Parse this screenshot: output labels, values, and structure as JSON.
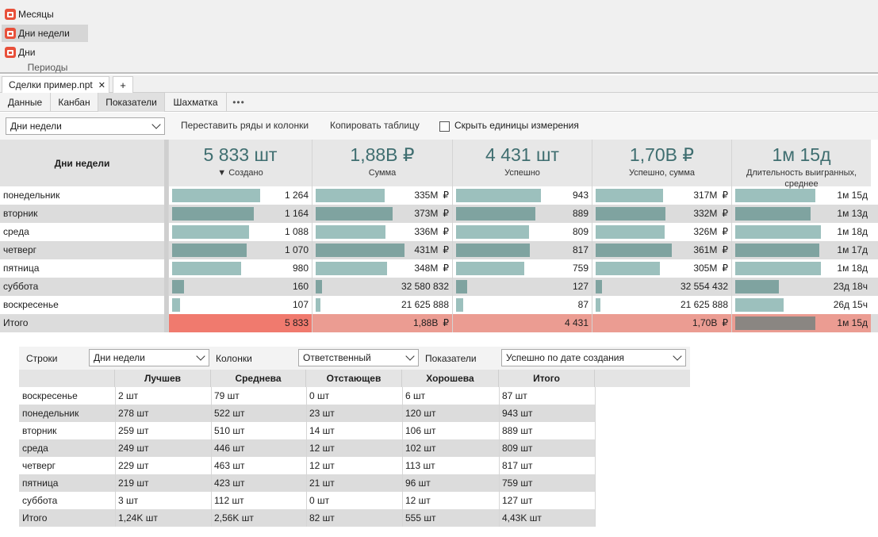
{
  "ribbon": {
    "items": [
      {
        "label": "Месяцы",
        "active": false
      },
      {
        "label": "Дни недели",
        "active": true
      },
      {
        "label": "Дни",
        "active": false
      }
    ],
    "group_label": "Периоды",
    "icon": "calendar-icon",
    "icon_color": "#e8503a"
  },
  "doc_tab": {
    "label": "Сделки пример.npt",
    "close": "✕",
    "add": "+"
  },
  "view_tabs": [
    {
      "label": "Данные",
      "active": false
    },
    {
      "label": "Канбан",
      "active": false
    },
    {
      "label": "Показатели",
      "active": true
    },
    {
      "label": "Шахматка",
      "active": false
    },
    {
      "label": "•••",
      "active": false
    }
  ],
  "toolbar": {
    "grouping_value": "Дни недели",
    "swap_label": "Переставить ряды и колонки",
    "copy_label": "Копировать таблицу",
    "hide_units_label": "Скрыть единицы измерения",
    "hide_units_checked": false
  },
  "pivot": {
    "row_header": "Дни недели",
    "metrics": [
      {
        "big": "5 833 шт",
        "label": "▼ Создано"
      },
      {
        "big": "1,88B  ₽",
        "label": "Сумма"
      },
      {
        "big": "4 431 шт",
        "label": "Успешно"
      },
      {
        "big": "1,70B  ₽",
        "label": "Успешно, сумма"
      },
      {
        "big": "1м 15д",
        "label": "Длительность выигранных, среднее"
      }
    ],
    "colors": {
      "bar_dark": "#7fa3a0",
      "bar_light": "#9cc0bd",
      "total_strong": "#f07a6e",
      "total_soft": "#eb9c92",
      "total_gray_bar": "#8a8682"
    },
    "rows": [
      {
        "label": "понедельник",
        "alt": false,
        "cells": [
          {
            "text": "1 264",
            "cur": "",
            "level": 0.92
          },
          {
            "text": "335M",
            "cur": "₽",
            "level": 0.74
          },
          {
            "text": "943",
            "cur": "",
            "level": 0.92
          },
          {
            "text": "317M",
            "cur": "₽",
            "level": 0.73
          },
          {
            "text": "1м 15д",
            "cur": "",
            "level": 0.87
          }
        ]
      },
      {
        "label": "вторник",
        "alt": true,
        "cells": [
          {
            "text": "1 164",
            "cur": "",
            "level": 0.85
          },
          {
            "text": "373M",
            "cur": "₽",
            "level": 0.83
          },
          {
            "text": "889",
            "cur": "",
            "level": 0.86
          },
          {
            "text": "332M",
            "cur": "₽",
            "level": 0.76
          },
          {
            "text": "1м 13д",
            "cur": "",
            "level": 0.82
          }
        ]
      },
      {
        "label": "среда",
        "alt": false,
        "cells": [
          {
            "text": "1 088",
            "cur": "",
            "level": 0.8
          },
          {
            "text": "336M",
            "cur": "₽",
            "level": 0.75
          },
          {
            "text": "809",
            "cur": "",
            "level": 0.79
          },
          {
            "text": "326M",
            "cur": "₽",
            "level": 0.75
          },
          {
            "text": "1м 18д",
            "cur": "",
            "level": 0.93
          }
        ]
      },
      {
        "label": "четверг",
        "alt": true,
        "cells": [
          {
            "text": "1 070",
            "cur": "",
            "level": 0.78
          },
          {
            "text": "431M",
            "cur": "₽",
            "level": 0.96
          },
          {
            "text": "817",
            "cur": "",
            "level": 0.8
          },
          {
            "text": "361M",
            "cur": "₽",
            "level": 0.83
          },
          {
            "text": "1м 17д",
            "cur": "",
            "level": 0.91
          }
        ]
      },
      {
        "label": "пятница",
        "alt": false,
        "cells": [
          {
            "text": "980",
            "cur": "",
            "level": 0.72
          },
          {
            "text": "348M",
            "cur": "₽",
            "level": 0.77
          },
          {
            "text": "759",
            "cur": "",
            "level": 0.74
          },
          {
            "text": "305M",
            "cur": "₽",
            "level": 0.7
          },
          {
            "text": "1м 18д",
            "cur": "",
            "level": 0.93
          }
        ]
      },
      {
        "label": "суббота",
        "alt": true,
        "cells": [
          {
            "text": "160",
            "cur": "",
            "level": 0.12
          },
          {
            "text": "32 580 832",
            "cur": "",
            "level": 0.07
          },
          {
            "text": "127",
            "cur": "",
            "level": 0.12
          },
          {
            "text": "32 554 432",
            "cur": "",
            "level": 0.07
          },
          {
            "text": "23д 18ч",
            "cur": "",
            "level": 0.47
          }
        ]
      },
      {
        "label": "воскресенье",
        "alt": false,
        "cells": [
          {
            "text": "107",
            "cur": "",
            "level": 0.08
          },
          {
            "text": "21 625 888",
            "cur": "",
            "level": 0.05
          },
          {
            "text": "87",
            "cur": "",
            "level": 0.08
          },
          {
            "text": "21 625 888",
            "cur": "",
            "level": 0.05
          },
          {
            "text": "26д 15ч",
            "cur": "",
            "level": 0.53
          }
        ]
      }
    ],
    "total": {
      "label": "Итого",
      "cells": [
        {
          "text": "5 833",
          "cur": ""
        },
        {
          "text": "1,88B",
          "cur": "₽"
        },
        {
          "text": "4 431",
          "cur": ""
        },
        {
          "text": "1,70B",
          "cur": "₽"
        },
        {
          "text": "1м 15д",
          "cur": ""
        }
      ]
    }
  },
  "lower": {
    "rows_label": "Строки",
    "rows_value": "Дни недели",
    "cols_label": "Колонки",
    "cols_value": "Ответственный",
    "metric_label": "Показатели",
    "metric_value": "Успешно по дате создания",
    "columns": [
      "Лучшев",
      "Среднева",
      "Отстающев",
      "Хорошева",
      "Итого"
    ],
    "rows": [
      {
        "label": "воскресенье",
        "values": [
          "2  шт",
          "79  шт",
          "0  шт",
          "6  шт",
          "87  шт"
        ]
      },
      {
        "label": "понедельник",
        "values": [
          "278  шт",
          "522  шт",
          "23  шт",
          "120  шт",
          "943  шт"
        ]
      },
      {
        "label": "вторник",
        "values": [
          "259  шт",
          "510  шт",
          "14  шт",
          "106  шт",
          "889  шт"
        ]
      },
      {
        "label": "среда",
        "values": [
          "249  шт",
          "446  шт",
          "12  шт",
          "102  шт",
          "809  шт"
        ]
      },
      {
        "label": "четверг",
        "values": [
          "229  шт",
          "463  шт",
          "12  шт",
          "113  шт",
          "817  шт"
        ]
      },
      {
        "label": "пятница",
        "values": [
          "219  шт",
          "423  шт",
          "21  шт",
          "96  шт",
          "759  шт"
        ]
      },
      {
        "label": "суббота",
        "values": [
          "3  шт",
          "112  шт",
          "0  шт",
          "12  шт",
          "127  шт"
        ]
      },
      {
        "label": "Итого",
        "values": [
          "1,24K  шт",
          "2,56K  шт",
          "82  шт",
          "555  шт",
          "4,43K  шт"
        ]
      }
    ]
  }
}
